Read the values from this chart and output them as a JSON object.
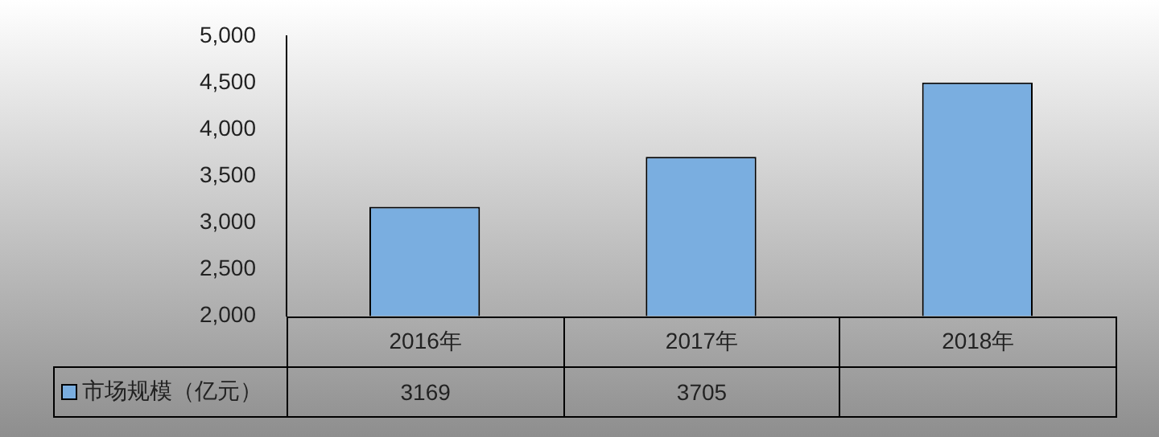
{
  "chart_data": {
    "type": "bar",
    "categories": [
      "2016年",
      "2017年",
      "2018年"
    ],
    "series": [
      {
        "name": "市场规模（亿元）",
        "color": "#7aaee0",
        "values": [
          3169,
          3705,
          4500
        ],
        "value_labels": [
          "3169",
          "3705",
          null
        ]
      }
    ],
    "ylim": [
      2000,
      5000
    ],
    "yticks": [
      {
        "value": 2000,
        "label": "2,000"
      },
      {
        "value": 2500,
        "label": "2,500"
      },
      {
        "value": 3000,
        "label": "3,000"
      },
      {
        "value": 3500,
        "label": "3,500"
      },
      {
        "value": 4000,
        "label": "4,000"
      },
      {
        "value": 4500,
        "label": "4,500"
      },
      {
        "value": 5000,
        "label": "5,000"
      }
    ],
    "grid": false,
    "legend": "bottom left"
  }
}
